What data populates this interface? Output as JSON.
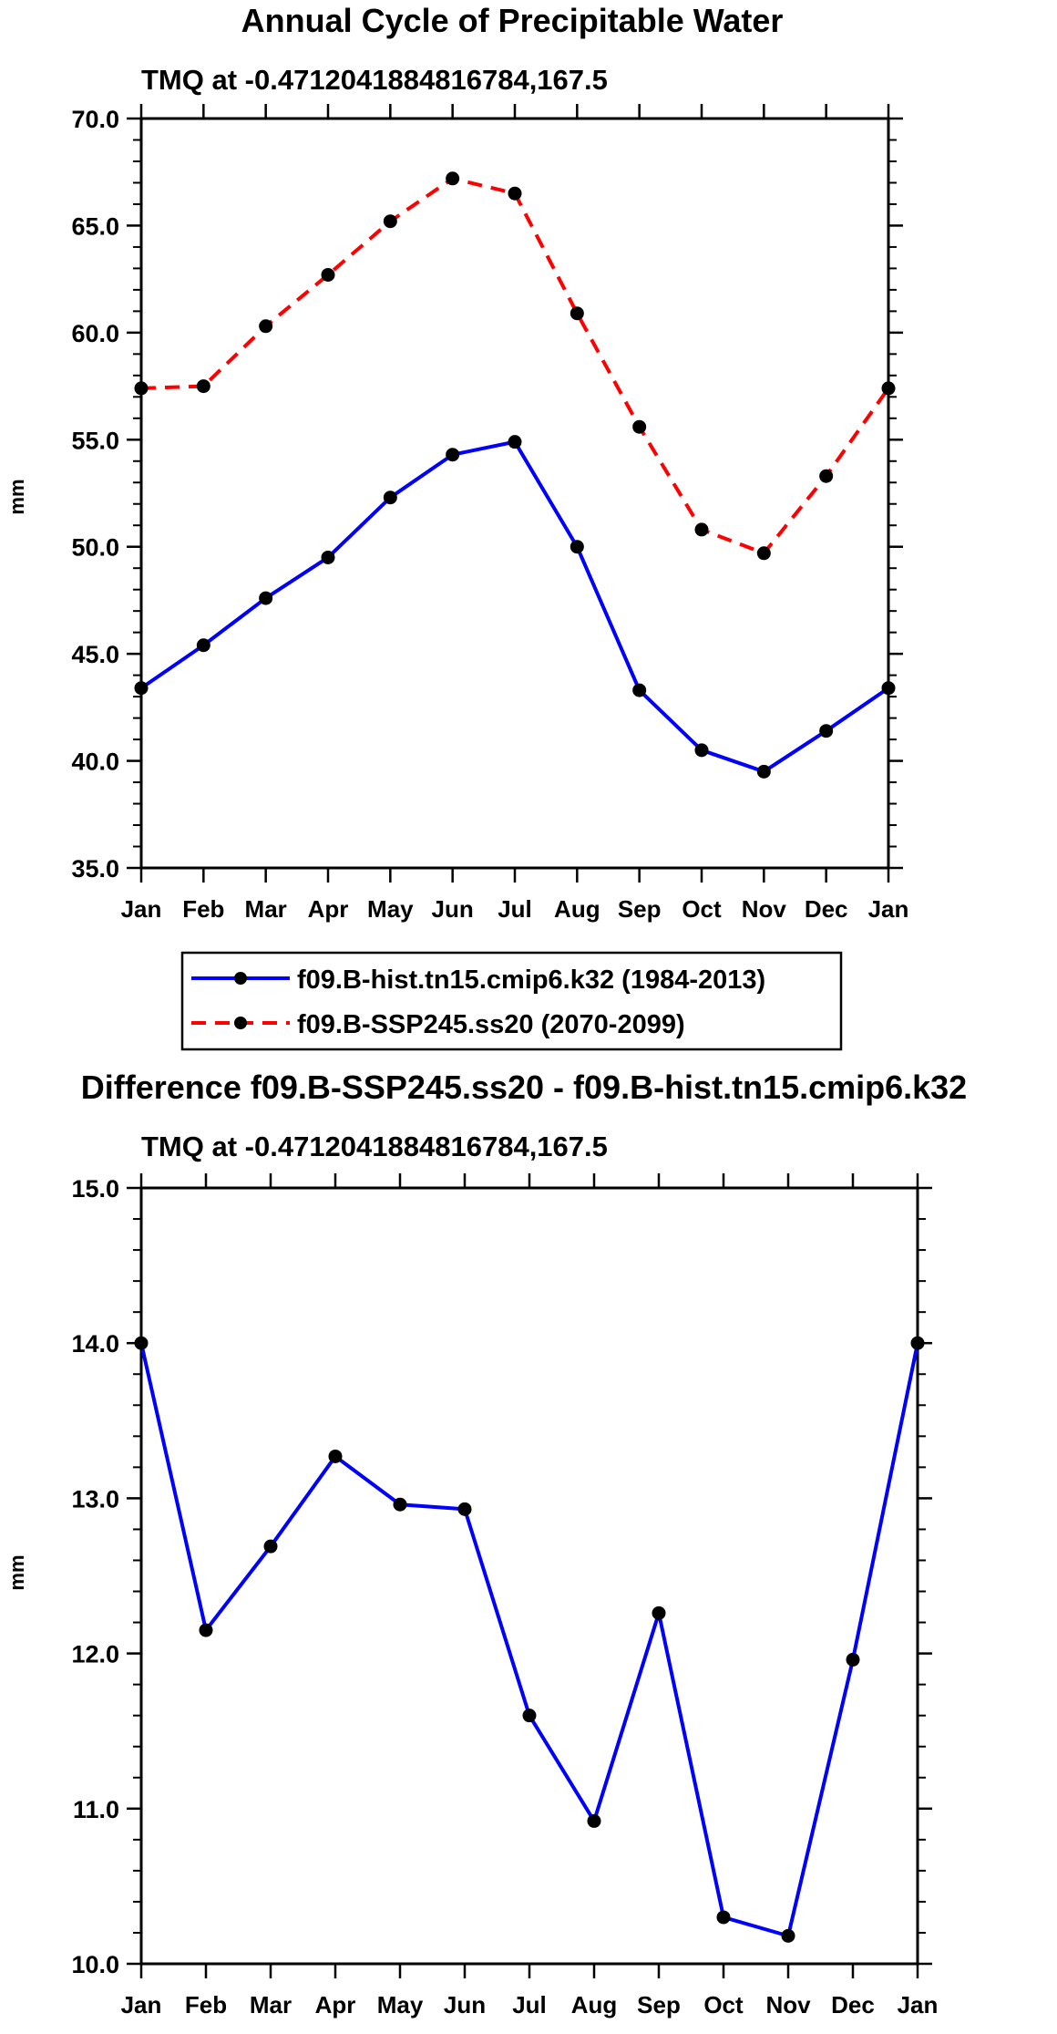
{
  "chart_data": [
    {
      "type": "line",
      "title": "Annual Cycle of Precipitable Water",
      "subtitle": "TMQ at -0.4712041884816784,167.5",
      "ylabel": "mm",
      "xlabel": "",
      "categories": [
        "Jan",
        "Feb",
        "Mar",
        "Apr",
        "May",
        "Jun",
        "Jul",
        "Aug",
        "Sep",
        "Oct",
        "Nov",
        "Dec",
        "Jan"
      ],
      "ylim": [
        35.0,
        70.0
      ],
      "yticks": [
        "35.0",
        "40.0",
        "45.0",
        "50.0",
        "55.0",
        "60.0",
        "65.0",
        "70.0"
      ],
      "series": [
        {
          "name": "f09.B-hist.tn15.cmip6.k32 (1984-2013)",
          "color": "#0000ff",
          "dash": "solid",
          "values": [
            43.4,
            45.4,
            47.6,
            49.5,
            52.3,
            54.3,
            54.9,
            50.0,
            43.3,
            40.5,
            39.5,
            41.4,
            43.4
          ]
        },
        {
          "name": "f09.B-SSP245.ss20 (2070-2099)",
          "color": "#ff0000",
          "dash": "dashed",
          "values": [
            57.4,
            57.5,
            60.3,
            62.7,
            65.2,
            67.2,
            66.5,
            60.9,
            55.6,
            50.8,
            49.7,
            53.3,
            57.4
          ]
        }
      ],
      "legend": "below"
    },
    {
      "type": "line",
      "title": "Difference f09.B-SSP245.ss20 - f09.B-hist.tn15.cmip6.k32",
      "subtitle": "TMQ at -0.4712041884816784,167.5",
      "ylabel": "mm",
      "xlabel": "",
      "categories": [
        "Jan",
        "Feb",
        "Mar",
        "Apr",
        "May",
        "Jun",
        "Jul",
        "Aug",
        "Sep",
        "Oct",
        "Nov",
        "Dec",
        "Jan"
      ],
      "ylim": [
        10.0,
        15.0
      ],
      "yticks": [
        "10.0",
        "11.0",
        "12.0",
        "13.0",
        "14.0",
        "15.0"
      ],
      "series": [
        {
          "name": "difference",
          "color": "#0000ff",
          "dash": "solid",
          "values": [
            14.0,
            12.15,
            12.69,
            13.27,
            12.96,
            12.93,
            11.6,
            10.92,
            12.26,
            10.3,
            10.18,
            11.96,
            14.0
          ]
        }
      ]
    }
  ]
}
